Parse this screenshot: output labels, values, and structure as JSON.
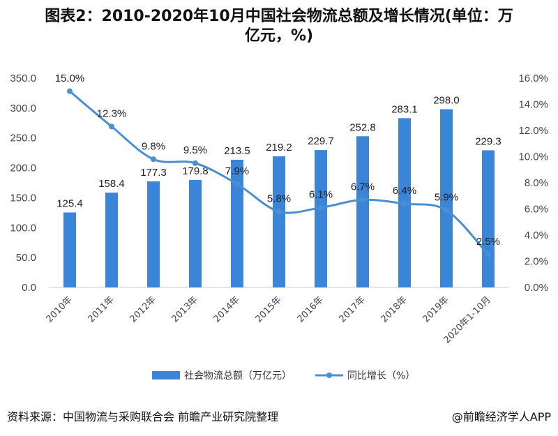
{
  "title_line1": "图表2：2010-2020年10月中国社会物流总额及增长情况(单位：万",
  "title_line2": "亿元，%)",
  "source_text": "资料来源：中国物流与采购联合会 前瞻产业研究院整理",
  "credit_text": "@前瞻经济学人APP",
  "colors": {
    "bar": "#3a85d8",
    "line": "#4a8fd4",
    "axis": "#cccccc"
  },
  "chart_data": {
    "type": "bar",
    "title": "图表2：2010-2020年10月中国社会物流总额及增长情况(单位：万亿元，%)",
    "categories": [
      "2010年",
      "2011年",
      "2012年",
      "2013年",
      "2014年",
      "2015年",
      "2016年",
      "2017年",
      "2018年",
      "2019年",
      "2020年1-10月"
    ],
    "series": [
      {
        "name": "社会物流总额（万亿元）",
        "type": "bar",
        "axis": "left",
        "values": [
          125.4,
          158.4,
          177.3,
          179.8,
          213.5,
          219.2,
          229.7,
          252.8,
          283.1,
          298.0,
          229.3
        ],
        "labels": [
          "125.4",
          "158.4",
          "177.3",
          "179.8",
          "213.5",
          "219.2",
          "229.7",
          "252.8",
          "283.1",
          "298.0",
          "229.3"
        ]
      },
      {
        "name": "同比增长（%）",
        "type": "line",
        "axis": "right",
        "values": [
          15.0,
          12.3,
          9.8,
          9.5,
          7.9,
          5.8,
          6.1,
          6.7,
          6.4,
          5.9,
          2.5
        ],
        "labels": [
          "15.0%",
          "12.3%",
          "9.8%",
          "9.5%",
          "7.9%",
          "5.8%",
          "6.1%",
          "6.7%",
          "6.4%",
          "5.9%",
          "2.5%"
        ]
      }
    ],
    "ylim_left": [
      0,
      350
    ],
    "ylim_right": [
      0,
      16
    ],
    "yticks_left": [
      "0.0",
      "50.0",
      "100.0",
      "150.0",
      "200.0",
      "250.0",
      "300.0",
      "350.0"
    ],
    "yticks_right": [
      "0.0%",
      "2.0%",
      "4.0%",
      "6.0%",
      "8.0%",
      "10.0%",
      "12.0%",
      "14.0%",
      "16.0%"
    ],
    "legend_position": "bottom"
  }
}
